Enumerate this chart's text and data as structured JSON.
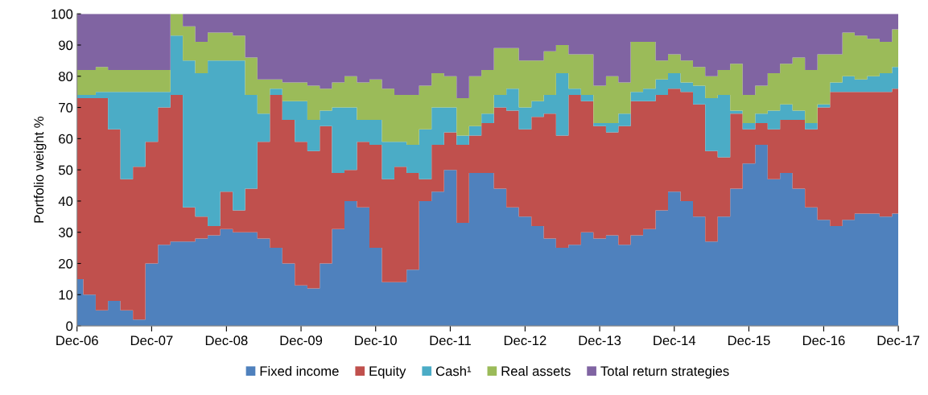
{
  "chart_data": {
    "type": "area",
    "stacked": true,
    "ylabel": "Portfolio weight %",
    "ylim": [
      0,
      100
    ],
    "yticks": [
      0,
      10,
      20,
      30,
      40,
      50,
      60,
      70,
      80,
      90,
      100
    ],
    "xlim": [
      "2006-12",
      "2017-12"
    ],
    "xticks": [
      {
        "value": "2006-12",
        "label": "Dec-06"
      },
      {
        "value": "2007-12",
        "label": "Dec-07"
      },
      {
        "value": "2008-12",
        "label": "Dec-08"
      },
      {
        "value": "2009-12",
        "label": "Dec-09"
      },
      {
        "value": "2010-12",
        "label": "Dec-10"
      },
      {
        "value": "2011-12",
        "label": "Dec-11"
      },
      {
        "value": "2012-12",
        "label": "Dec-12"
      },
      {
        "value": "2013-12",
        "label": "Dec-13"
      },
      {
        "value": "2014-12",
        "label": "Dec-14"
      },
      {
        "value": "2015-12",
        "label": "Dec-15"
      },
      {
        "value": "2016-12",
        "label": "Dec-16"
      },
      {
        "value": "2017-12",
        "label": "Dec-17"
      }
    ],
    "x": [
      "2006-12",
      "2007-02",
      "2007-04",
      "2007-06",
      "2007-08",
      "2007-10",
      "2007-12",
      "2008-02",
      "2008-04",
      "2008-06",
      "2008-08",
      "2008-10",
      "2008-12",
      "2009-02",
      "2009-04",
      "2009-06",
      "2009-08",
      "2009-10",
      "2009-12",
      "2010-02",
      "2010-04",
      "2010-06",
      "2010-08",
      "2010-10",
      "2010-12",
      "2011-02",
      "2011-04",
      "2011-06",
      "2011-08",
      "2011-10",
      "2011-12",
      "2012-02",
      "2012-04",
      "2012-06",
      "2012-08",
      "2012-10",
      "2012-12",
      "2013-02",
      "2013-04",
      "2013-06",
      "2013-08",
      "2013-10",
      "2013-12",
      "2014-02",
      "2014-04",
      "2014-06",
      "2014-08",
      "2014-10",
      "2014-12",
      "2015-02",
      "2015-04",
      "2015-06",
      "2015-08",
      "2015-10",
      "2015-12",
      "2016-02",
      "2016-04",
      "2016-06",
      "2016-08",
      "2016-10",
      "2016-12",
      "2017-02",
      "2017-04",
      "2017-06",
      "2017-08",
      "2017-10",
      "2017-12"
    ],
    "series": [
      {
        "name": "Fixed income",
        "color": "#4f81bd",
        "values": [
          15,
          10,
          5,
          8,
          5,
          2,
          20,
          26,
          27,
          27,
          28,
          29,
          31,
          30,
          30,
          28,
          25,
          20,
          13,
          12,
          20,
          31,
          40,
          38,
          25,
          14,
          14,
          18,
          40,
          43,
          50,
          33,
          49,
          49,
          44,
          38,
          35,
          32,
          28,
          25,
          26,
          30,
          28,
          29,
          26,
          29,
          31,
          37,
          43,
          40,
          35,
          27,
          35,
          44,
          52,
          58,
          47,
          49,
          44,
          38,
          34,
          32,
          34,
          36,
          36,
          35,
          36
        ]
      },
      {
        "name": "Equity",
        "color": "#c0504d",
        "values": [
          58,
          63,
          68,
          55,
          42,
          49,
          39,
          44,
          47,
          11,
          7,
          3,
          12,
          7,
          14,
          31,
          49,
          46,
          46,
          44,
          44,
          18,
          10,
          21,
          33,
          33,
          37,
          31,
          7,
          15,
          12,
          25,
          12,
          16,
          26,
          31,
          28,
          35,
          40,
          36,
          48,
          42,
          36,
          33,
          38,
          43,
          41,
          37,
          33,
          35,
          36,
          29,
          19,
          24,
          11,
          7,
          16,
          17,
          22,
          25,
          36,
          43,
          41,
          39,
          39,
          40,
          40
        ]
      },
      {
        "name": "Cash¹",
        "color": "#4bacc6",
        "values": [
          1,
          1,
          2,
          12,
          28,
          24,
          16,
          5,
          19,
          47,
          46,
          53,
          42,
          48,
          30,
          9,
          2,
          6,
          13,
          10,
          5,
          21,
          20,
          7,
          8,
          12,
          8,
          9,
          16,
          12,
          8,
          3,
          3,
          3,
          4,
          7,
          7,
          5,
          6,
          20,
          2,
          2,
          1,
          3,
          4,
          3,
          4,
          5,
          5,
          3,
          6,
          17,
          20,
          1,
          2,
          3,
          6,
          5,
          3,
          2,
          1,
          3,
          5,
          4,
          5,
          6,
          7
        ]
      },
      {
        "name": "Real assets",
        "color": "#9bbb59",
        "values": [
          8,
          8,
          8,
          7,
          7,
          7,
          7,
          7,
          7,
          11,
          10,
          9,
          9,
          8,
          12,
          11,
          3,
          6,
          6,
          11,
          7,
          8,
          10,
          12,
          13,
          17,
          15,
          16,
          14,
          11,
          10,
          12,
          16,
          14,
          15,
          13,
          15,
          13,
          14,
          9,
          11,
          13,
          12,
          15,
          10,
          16,
          15,
          6,
          6,
          7,
          6,
          7,
          8,
          15,
          9,
          9,
          12,
          13,
          17,
          17,
          16,
          9,
          14,
          14,
          12,
          10,
          12
        ]
      },
      {
        "name": "Total return strategies",
        "color": "#8064a2",
        "values": [
          18,
          18,
          17,
          18,
          18,
          18,
          18,
          18,
          0,
          4,
          9,
          6,
          6,
          7,
          14,
          21,
          21,
          22,
          22,
          23,
          24,
          22,
          20,
          22,
          21,
          24,
          26,
          26,
          23,
          19,
          20,
          27,
          20,
          18,
          11,
          11,
          15,
          15,
          12,
          10,
          13,
          13,
          23,
          20,
          22,
          9,
          9,
          15,
          13,
          15,
          17,
          20,
          18,
          16,
          26,
          23,
          19,
          16,
          14,
          18,
          13,
          13,
          6,
          7,
          8,
          9,
          5
        ]
      }
    ],
    "grid": false,
    "legend": "bottom"
  }
}
